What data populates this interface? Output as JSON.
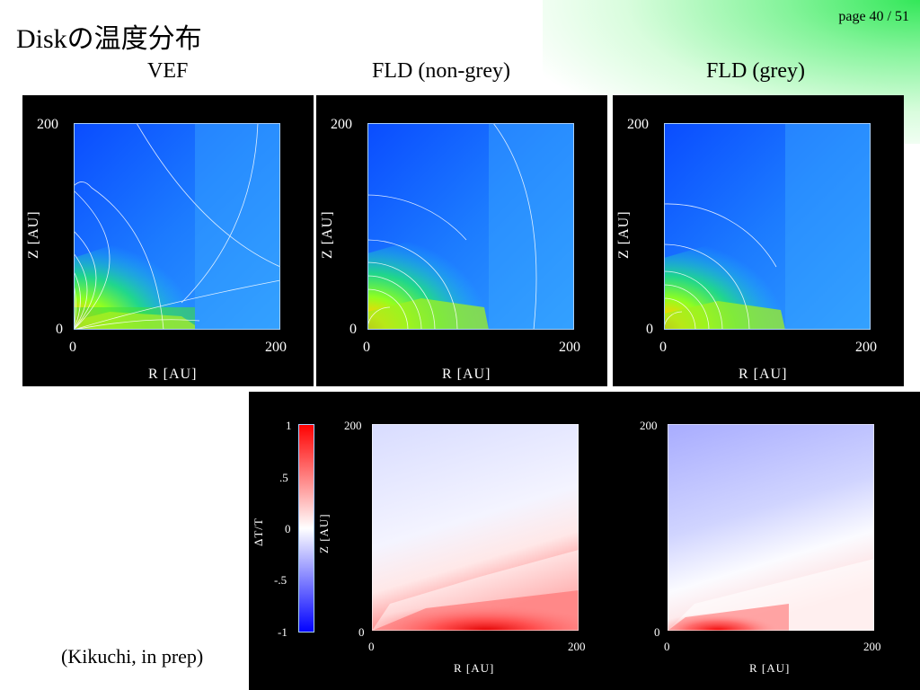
{
  "slide": {
    "title": "Diskの温度分布",
    "page": "page 40 / 51",
    "credit": "(Kikuchi, in prep)"
  },
  "top_row": {
    "labels": [
      "VEF",
      "FLD (non-grey)",
      "FLD (grey)"
    ],
    "axes": {
      "xlabel": "R [AU]",
      "ylabel": "Z [AU]",
      "x_ticks": [
        "0",
        "200"
      ],
      "y_ticks": [
        "0",
        "200"
      ]
    }
  },
  "bottom_row": {
    "colorbar": {
      "label": "ΔT/T",
      "ticks": [
        "1",
        ".5",
        "0",
        "-.5",
        "-1"
      ],
      "colors": {
        "high": "#ff0000",
        "mid": "#ffffff",
        "low": "#0000ff"
      }
    },
    "axes": {
      "xlabel": "R [AU]",
      "ylabel": "Z [AU]",
      "x_ticks": [
        "0",
        "200"
      ],
      "y_ticks": [
        "0",
        "200"
      ]
    }
  },
  "colors": {
    "panel_bg": "#000000",
    "frame": "#a8d0ff",
    "accent_green": "#33e060"
  }
}
